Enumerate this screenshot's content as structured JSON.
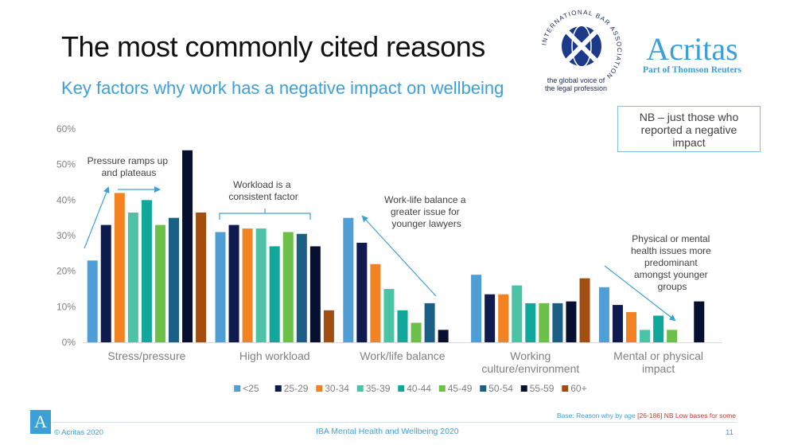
{
  "header": {
    "title": "The most commonly cited reasons",
    "subtitle": "Key factors why work has a negative impact on wellbeing"
  },
  "logos": {
    "iba_ring_text": "INTERNATIONAL BAR ASSOCIATION",
    "iba_tagline_1": "the global voice of",
    "iba_tagline_2": "the legal profession",
    "acritas_name": "Acritas",
    "acritas_sub": "Part of Thomson Reuters",
    "footer_mark": "A"
  },
  "nb_box": {
    "line1": "NB – just those who",
    "line2": "reported a negative",
    "line3": "impact"
  },
  "annotations": [
    {
      "lines": [
        "Pressure ramps up",
        "and plateaus"
      ]
    },
    {
      "lines": [
        "Workload is a",
        "consistent factor"
      ]
    },
    {
      "lines": [
        "Work-life balance a",
        "greater issue for",
        "younger lawyers"
      ]
    },
    {
      "lines": [
        "Physical or mental",
        "health issues more",
        "predominant",
        "amongst younger",
        "groups"
      ]
    }
  ],
  "colors": {
    "accent": "#3d9fd8",
    "axis_text": "#7f7f7f",
    "series": [
      "#4f9fd6",
      "#0f1a4f",
      "#f58220",
      "#4cc3a6",
      "#10a89a",
      "#6cc04a",
      "#1c5f86",
      "#07102e",
      "#a14e10"
    ]
  },
  "chart_data": {
    "type": "bar",
    "categories": [
      [
        "Stress/pressure"
      ],
      [
        "High workload"
      ],
      [
        "Work/life balance"
      ],
      [
        "Working",
        "culture/environment"
      ],
      [
        "Mental or physical",
        "impact"
      ]
    ],
    "series": [
      {
        "name": "<25",
        "values": [
          23,
          31,
          35,
          19,
          15.5
        ]
      },
      {
        "name": "25-29",
        "values": [
          33,
          33,
          28,
          13.5,
          10.5
        ]
      },
      {
        "name": "30-34",
        "values": [
          42,
          32,
          22,
          13.5,
          8.5
        ]
      },
      {
        "name": "35-39",
        "values": [
          36.5,
          32,
          15,
          16,
          3.5
        ]
      },
      {
        "name": "40-44",
        "values": [
          40,
          27,
          9,
          11,
          7.5
        ]
      },
      {
        "name": "45-49",
        "values": [
          33,
          31,
          5.5,
          11,
          3.5
        ]
      },
      {
        "name": "50-54",
        "values": [
          35,
          30.5,
          11,
          11,
          0
        ]
      },
      {
        "name": "55-59",
        "values": [
          54,
          27,
          3.5,
          11.5,
          11.5
        ]
      },
      {
        "name": "60+",
        "values": [
          36.5,
          9,
          0,
          18,
          0
        ]
      }
    ],
    "ylim": [
      0,
      60
    ],
    "yticks": [
      "0%",
      "10%",
      "20%",
      "30%",
      "40%",
      "50%",
      "60%"
    ],
    "grid": false,
    "legend_position": "bottom"
  },
  "footer": {
    "copyright": "© Acritas 2020",
    "center": "IBA Mental Health and Wellbeing 2020",
    "page": "11",
    "base_prefix": "Base: Reason why by age ",
    "base_range": "[26-186]",
    "base_low": " NB Low bases for some"
  }
}
